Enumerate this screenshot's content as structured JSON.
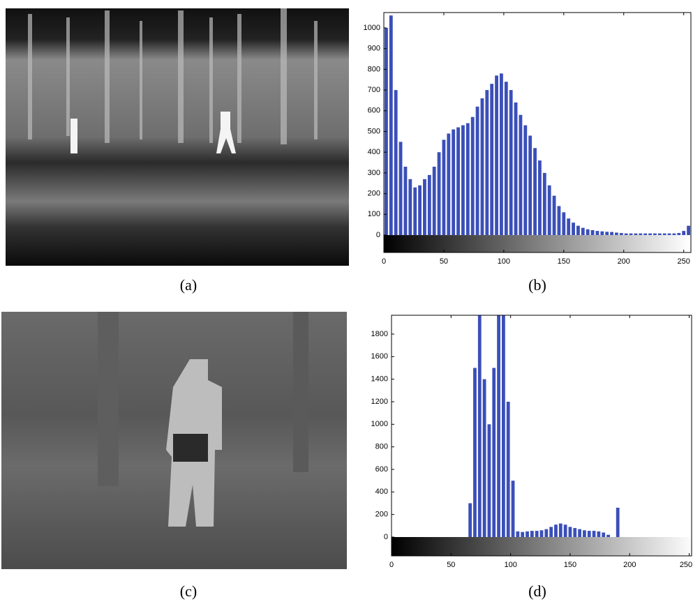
{
  "captions": [
    "(a)",
    "(b)",
    "(c)",
    "(d)"
  ],
  "chart_data": [
    {
      "type": "histogram",
      "color": "#3b4fb8",
      "bins": [
        0,
        4,
        8,
        12,
        16,
        20,
        24,
        28,
        32,
        36,
        40,
        44,
        48,
        52,
        56,
        60,
        64,
        68,
        72,
        76,
        80,
        84,
        88,
        92,
        96,
        100,
        104,
        108,
        112,
        116,
        120,
        124,
        128,
        132,
        136,
        140,
        144,
        148,
        152,
        156,
        160,
        164,
        168,
        172,
        176,
        180,
        184,
        188,
        192,
        196,
        200,
        204,
        208,
        212,
        216,
        220,
        224,
        228,
        232,
        236,
        240,
        244,
        248,
        252,
        256
      ],
      "values": [
        1000,
        1060,
        700,
        450,
        330,
        270,
        230,
        240,
        270,
        290,
        330,
        400,
        460,
        490,
        510,
        520,
        530,
        540,
        570,
        620,
        660,
        700,
        730,
        770,
        780,
        740,
        700,
        640,
        580,
        530,
        480,
        420,
        360,
        300,
        240,
        190,
        140,
        110,
        80,
        60,
        45,
        35,
        28,
        24,
        20,
        18,
        16,
        15,
        12,
        10,
        8,
        8,
        8,
        8,
        8,
        8,
        8,
        8,
        8,
        8,
        8,
        10,
        20,
        45
      ],
      "xlim": [
        0,
        256
      ],
      "ylim": [
        -84,
        1074
      ],
      "xticks": [
        0,
        50,
        100,
        150,
        200,
        250
      ],
      "yticks": [
        0,
        100,
        200,
        300,
        400,
        500,
        600,
        700,
        800,
        900,
        1000
      ]
    },
    {
      "type": "histogram",
      "color": "#3b4fb8",
      "bins": [
        0,
        4,
        8,
        12,
        16,
        20,
        24,
        28,
        32,
        36,
        40,
        44,
        48,
        52,
        56,
        60,
        64,
        68,
        72,
        76,
        80,
        84,
        88,
        92,
        96,
        100,
        104,
        108,
        112,
        116,
        120,
        124,
        128,
        132,
        136,
        140,
        144,
        148,
        152,
        156,
        160,
        164,
        168,
        172,
        176,
        180,
        184,
        188,
        192,
        196,
        200,
        204,
        208,
        212,
        216,
        220,
        224,
        228,
        232,
        236,
        240,
        244,
        248,
        252,
        256
      ],
      "values": [
        0,
        0,
        0,
        0,
        0,
        0,
        0,
        0,
        0,
        0,
        0,
        0,
        0,
        0,
        0,
        0,
        300,
        1500,
        1980,
        1400,
        1000,
        1500,
        1980,
        1980,
        1200,
        500,
        50,
        45,
        50,
        55,
        55,
        60,
        70,
        90,
        110,
        120,
        110,
        90,
        80,
        70,
        60,
        55,
        55,
        50,
        40,
        20,
        0,
        260,
        0,
        0,
        0,
        0,
        0,
        0,
        0,
        0,
        0,
        0,
        0,
        0,
        0,
        0,
        0,
        0
      ],
      "xlim": [
        0,
        252
      ],
      "ylim": [
        -167,
        1967
      ],
      "xticks": [
        0,
        50,
        100,
        150,
        200,
        250
      ],
      "yticks": [
        0,
        200,
        400,
        600,
        800,
        1000,
        1200,
        1400,
        1600,
        1800
      ]
    }
  ]
}
